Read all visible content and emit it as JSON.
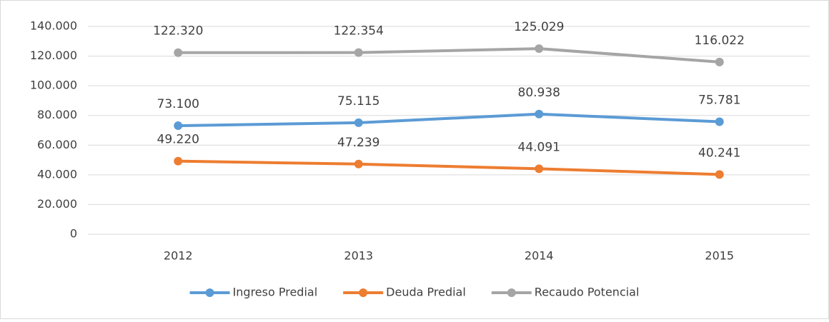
{
  "chart_data": {
    "type": "line",
    "categories": [
      "2012",
      "2013",
      "2014",
      "2015"
    ],
    "series": [
      {
        "name": "Ingreso Predial",
        "color": "#5b9bd5",
        "values": [
          73100,
          75115,
          80938,
          75781
        ],
        "value_labels": [
          "73.100",
          "75.115",
          "80.938",
          "75.781"
        ]
      },
      {
        "name": "Deuda Predial",
        "color": "#ed7d31",
        "values": [
          49220,
          47239,
          44091,
          40241
        ],
        "value_labels": [
          "49.220",
          "47.239",
          "44.091",
          "40.241"
        ]
      },
      {
        "name": "Recaudo Potencial",
        "color": "#a5a5a5",
        "values": [
          122320,
          122354,
          125029,
          116022
        ],
        "value_labels": [
          "122.320",
          "122.354",
          "125.029",
          "116.022"
        ]
      }
    ],
    "ylim": [
      0,
      140000
    ],
    "yticks": [
      0,
      {
        "value": 20000,
        "label": "20.000"
      },
      {
        "value": 40000,
        "label": "40.000"
      },
      {
        "value": 60000,
        "label": "60.000"
      },
      {
        "value": 80000,
        "label": "80.000"
      },
      {
        "value": 100000,
        "label": "100.000"
      },
      {
        "value": 120000,
        "label": "120.000"
      },
      {
        "value": 140000,
        "label": "140.000"
      }
    ],
    "grid": true,
    "legend": "bottom"
  }
}
